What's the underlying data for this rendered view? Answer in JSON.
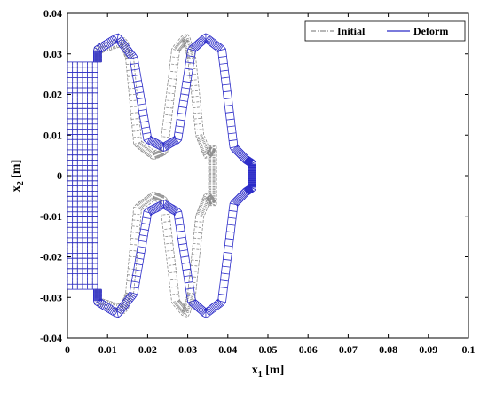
{
  "chart_data": {
    "type": "line",
    "xlabel_base": "x",
    "xlabel_sub": "1",
    "xlabel_unit": " [m]",
    "ylabel_base": "x",
    "ylabel_sub": "2",
    "ylabel_unit": " [m]",
    "xlim": [
      0,
      0.1
    ],
    "ylim": [
      -0.04,
      0.04
    ],
    "xticks": [
      0,
      0.01,
      0.02,
      0.03,
      0.04,
      0.05,
      0.06,
      0.07,
      0.08,
      0.09,
      0.1
    ],
    "xtick_labels": [
      "0",
      "0.01",
      "0.02",
      "0.03",
      "0.04",
      "0.05",
      "0.06",
      "0.07",
      "0.08",
      "0.09",
      "0.1"
    ],
    "yticks": [
      -0.04,
      -0.03,
      -0.02,
      -0.01,
      0,
      0.01,
      0.02,
      0.03,
      0.04
    ],
    "ytick_labels": [
      "-0.04",
      "-0.03",
      "-0.02",
      "-0.01",
      "0",
      "0.01",
      "0.02",
      "0.03",
      "0.04"
    ],
    "legend_position": "top-right",
    "series": [
      {
        "name": "Initial",
        "color": "#8c8c8c",
        "style": "dash-dot",
        "x": [
          0.0,
          0.0,
          0.0075,
          0.0075,
          0.014,
          0.0155,
          0.0175,
          0.0215,
          0.024,
          0.027,
          0.0295,
          0.031,
          0.033,
          0.035,
          0.0362,
          0.0362,
          0.0362,
          0.0362,
          0.035,
          0.033,
          0.031,
          0.0295,
          0.027,
          0.024,
          0.0215,
          0.0175,
          0.0155,
          0.014,
          0.0075,
          0.0075,
          0.0,
          0.0
        ],
        "y": [
          -0.028,
          0.028,
          0.028,
          0.031,
          0.033,
          0.029,
          0.008,
          0.005,
          0.006,
          0.031,
          0.034,
          0.029,
          0.01,
          0.005,
          0.007,
          0.002,
          -0.002,
          -0.007,
          -0.005,
          -0.01,
          -0.029,
          -0.034,
          -0.031,
          -0.006,
          -0.005,
          -0.008,
          -0.029,
          -0.033,
          -0.031,
          -0.028,
          -0.028,
          0.028
        ]
      },
      {
        "name": "Deform",
        "color": "#2b2bc8",
        "style": "solid",
        "x": [
          0.0,
          0.0,
          0.0075,
          0.0075,
          0.0125,
          0.0165,
          0.02,
          0.024,
          0.0275,
          0.031,
          0.0345,
          0.0385,
          0.0415,
          0.0445,
          0.046,
          0.046,
          0.046,
          0.046,
          0.0445,
          0.0415,
          0.0385,
          0.0345,
          0.031,
          0.0275,
          0.024,
          0.02,
          0.0165,
          0.0125,
          0.0075,
          0.0075,
          0.0,
          0.0
        ],
        "y": [
          -0.028,
          0.028,
          0.028,
          0.031,
          0.034,
          0.029,
          0.009,
          0.007,
          0.009,
          0.031,
          0.034,
          0.031,
          0.007,
          0.004,
          0.003,
          0.001,
          -0.001,
          -0.003,
          -0.004,
          -0.007,
          -0.031,
          -0.034,
          -0.031,
          -0.009,
          -0.007,
          -0.009,
          -0.029,
          -0.034,
          -0.031,
          -0.028,
          -0.028,
          0.028
        ]
      }
    ]
  }
}
